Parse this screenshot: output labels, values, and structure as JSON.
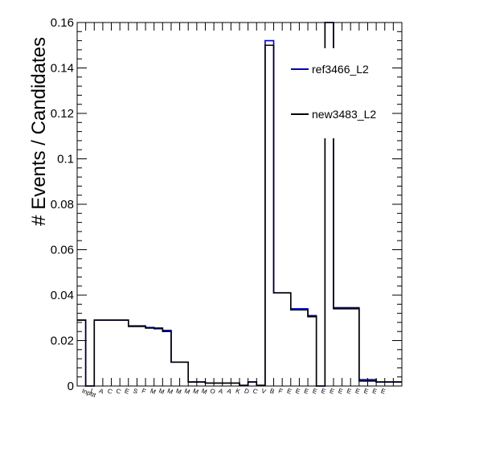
{
  "chart_data": {
    "type": "histogram",
    "title": "",
    "xlabel": "",
    "ylabel": "# Events / Candidates",
    "ylim": [
      0,
      0.16
    ],
    "yticks": [
      0,
      0.02,
      0.04,
      0.06,
      0.08,
      0.1,
      0.12,
      0.14,
      0.16
    ],
    "ytick_labels": [
      "0",
      "0.02",
      "0.04",
      "0.06",
      "0.08",
      "0.1",
      "0.12",
      "0.14",
      "0.16"
    ],
    "grid": false,
    "legend_position": "top-right",
    "visible_categories": [
      "Input",
      "L",
      "A",
      "C",
      "C",
      "E",
      "S",
      "F",
      "M",
      "M",
      "M",
      "M",
      "M",
      "M",
      "M",
      "O",
      "A",
      "A",
      "K",
      "D",
      "C",
      "V",
      "B",
      "F",
      "E",
      "E",
      "E",
      "E",
      "E",
      "E",
      "E",
      "E",
      "E",
      "E",
      "E",
      "E"
    ],
    "series": [
      {
        "name": "ref3466_L2",
        "color": "#0000cc",
        "values": [
          0.029,
          0.0,
          0.029,
          0.029,
          0.029,
          0.029,
          0.0265,
          0.0265,
          0.0258,
          0.0252,
          0.0245,
          0.0105,
          0.0105,
          0.0018,
          0.0018,
          0.0013,
          0.0013,
          0.0013,
          0.0013,
          0.0003,
          0.0018,
          0.0003,
          0.152,
          0.041,
          0.041,
          0.034,
          0.034,
          0.031,
          0.0,
          0.16,
          0.0345,
          0.0345,
          0.0345,
          0.0028,
          0.0028,
          0.0018,
          0.0018,
          0.0018
        ]
      },
      {
        "name": "new3483_L2",
        "color": "#000000",
        "values": [
          0.029,
          0.0,
          0.029,
          0.029,
          0.029,
          0.029,
          0.0262,
          0.0262,
          0.0255,
          0.0255,
          0.024,
          0.0105,
          0.0105,
          0.0018,
          0.0018,
          0.0013,
          0.0013,
          0.0013,
          0.0013,
          0.0003,
          0.0018,
          0.0003,
          0.15,
          0.041,
          0.041,
          0.0335,
          0.0335,
          0.0305,
          0.0,
          0.16,
          0.034,
          0.034,
          0.034,
          0.0022,
          0.0022,
          0.0018,
          0.0018,
          0.0018
        ]
      }
    ]
  }
}
